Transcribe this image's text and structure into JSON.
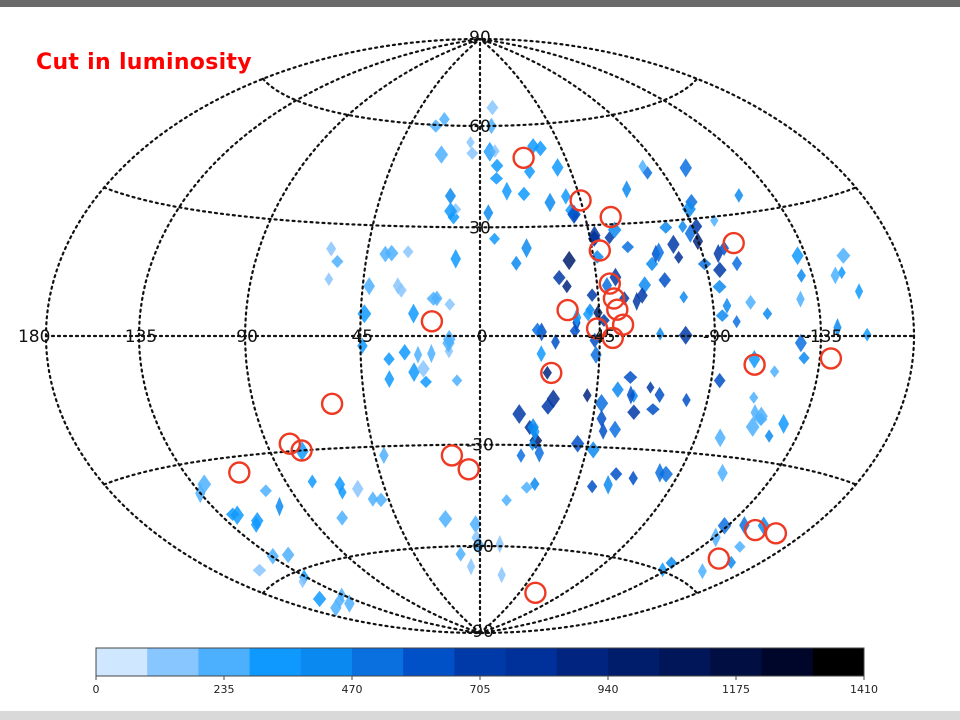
{
  "title": "Cut in luminosity",
  "map": {
    "longitude_labels": [
      {
        "text": "180",
        "lon": 180
      },
      {
        "text": "135",
        "lon": 135
      },
      {
        "text": "90",
        "lon": 90
      },
      {
        "text": "45",
        "lon": 45
      },
      {
        "text": "0",
        "lon": 0
      },
      {
        "text": "-45",
        "lon": -45
      },
      {
        "text": "-90",
        "lon": -90
      },
      {
        "text": "-135",
        "lon": -135
      }
    ],
    "latitude_labels": [
      {
        "text": "90",
        "lat": 90
      },
      {
        "text": "60",
        "lat": 60
      },
      {
        "text": "30",
        "lat": 30
      },
      {
        "text": "-30",
        "lat": -30
      },
      {
        "text": "-60",
        "lat": -60
      },
      {
        "text": "-90",
        "lat": -90
      }
    ],
    "colors": {
      "grid": "#111111",
      "marker": "#ee3a22",
      "title": "#ff0000"
    }
  },
  "colorbar": {
    "ticks": [
      "0",
      "235",
      "470",
      "705",
      "940",
      "1175",
      "1410"
    ],
    "range": [
      0,
      1410
    ],
    "colors": [
      "#cfe8ff",
      "#88c6ff",
      "#4cb0ff",
      "#0f99ff",
      "#0a8af0",
      "#0a70e0",
      "#0050c8",
      "#003aa8",
      "#00309a",
      "#002480",
      "#001d6c",
      "#001658",
      "#000e42",
      "#00062a",
      "#000000"
    ]
  },
  "chart_data": {
    "type": "scatter",
    "projection": "Hammer-Aitoff, galactic coordinates",
    "markers": [
      {
        "lon": -23,
        "lat": 50
      },
      {
        "lon": -45,
        "lat": 37
      },
      {
        "lon": -56,
        "lat": 32
      },
      {
        "lon": -48,
        "lat": 23
      },
      {
        "lon": -105,
        "lat": 23
      },
      {
        "lon": -50,
        "lat": 14
      },
      {
        "lon": -51,
        "lat": 10
      },
      {
        "lon": -52,
        "lat": 7
      },
      {
        "lon": -33,
        "lat": 7
      },
      {
        "lon": -54,
        "lat": 3
      },
      {
        "lon": 18,
        "lat": 4
      },
      {
        "lon": -44,
        "lat": 2
      },
      {
        "lon": -50,
        "lat": -0.5
      },
      {
        "lon": -107,
        "lat": -7
      },
      {
        "lon": -140,
        "lat": -5
      },
      {
        "lon": -27,
        "lat": -10
      },
      {
        "lon": 58,
        "lat": -18
      },
      {
        "lon": 80,
        "lat": -28
      },
      {
        "lon": 76,
        "lat": -30
      },
      {
        "lon": 109,
        "lat": -34
      },
      {
        "lon": 12,
        "lat": -33
      },
      {
        "lon": 5,
        "lat": -37
      },
      {
        "lon": -152,
        "lat": -45
      },
      {
        "lon": -165,
        "lat": -44
      },
      {
        "lon": -154,
        "lat": -53
      },
      {
        "lon": -62,
        "lat": -74
      }
    ],
    "density_sources": [
      {
        "lon": -48,
        "lat": 30,
        "v": 705
      },
      {
        "lon": -90,
        "lat": 20,
        "v": 820
      },
      {
        "lon": -52,
        "lat": 12,
        "v": 940
      },
      {
        "lon": -45,
        "lat": 5,
        "v": 650
      },
      {
        "lon": -60,
        "lat": 18,
        "v": 760
      },
      {
        "lon": -40,
        "lat": -5,
        "v": 600
      },
      {
        "lon": -35,
        "lat": -20,
        "v": 880
      },
      {
        "lon": -30,
        "lat": -35,
        "v": 520
      },
      {
        "lon": -100,
        "lat": 35,
        "v": 470
      },
      {
        "lon": 10,
        "lat": 55,
        "v": 300
      },
      {
        "lon": -20,
        "lat": 45,
        "v": 350
      },
      {
        "lon": 45,
        "lat": 20,
        "v": 240
      },
      {
        "lon": 20,
        "lat": -15,
        "v": 320
      },
      {
        "lon": 60,
        "lat": -40,
        "v": 380
      },
      {
        "lon": -120,
        "lat": -25,
        "v": 420
      },
      {
        "lon": -140,
        "lat": 10,
        "v": 400
      },
      {
        "lon": 120,
        "lat": -45,
        "v": 350
      },
      {
        "lon": 150,
        "lat": -60,
        "v": 300
      },
      {
        "lon": -150,
        "lat": -50,
        "v": 520
      },
      {
        "lon": 0,
        "lat": -60,
        "v": 260
      },
      {
        "lon": -75,
        "lat": -10,
        "v": 700
      },
      {
        "lon": -110,
        "lat": 0,
        "v": 480
      },
      {
        "lon": -65,
        "lat": -30,
        "v": 610
      },
      {
        "lon": -5,
        "lat": 30,
        "v": 380
      },
      {
        "lon": 30,
        "lat": 5,
        "v": 300
      }
    ]
  }
}
